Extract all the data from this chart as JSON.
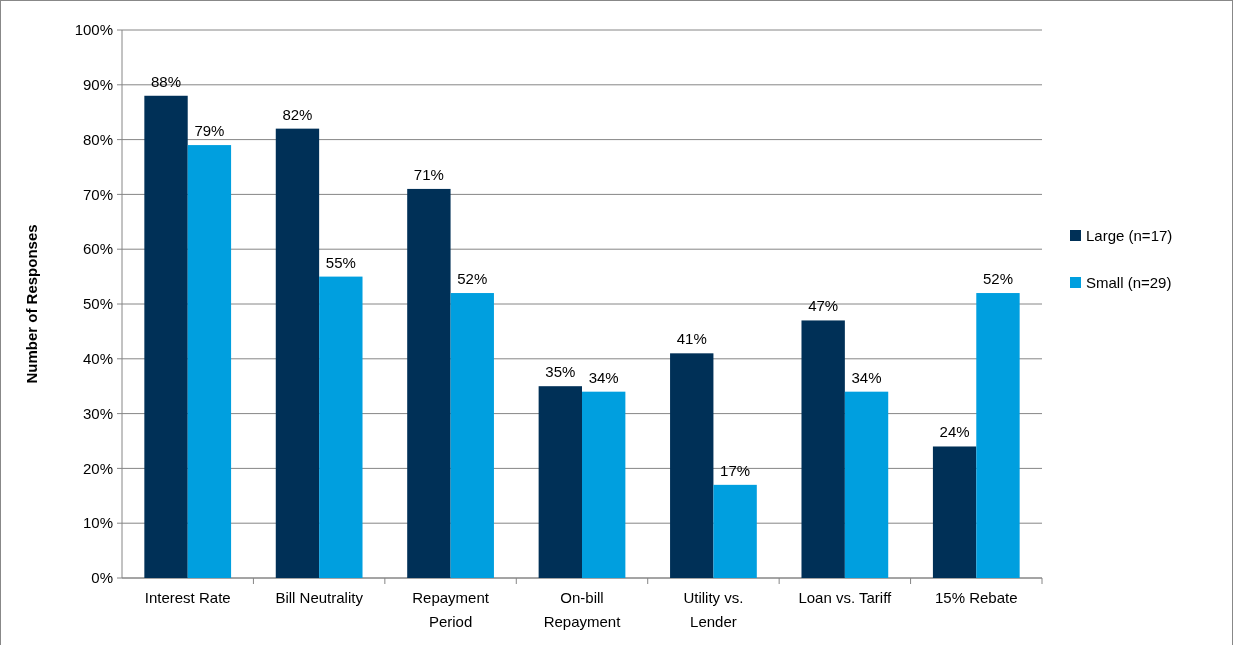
{
  "chart_data": {
    "type": "bar",
    "ylabel": "Number of Responses",
    "categories": [
      "Interest Rate",
      "Bill Neutrality",
      "Repayment Period",
      "On-bill Repayment",
      "Utility vs. Lender",
      "Loan vs. Tariff",
      "15% Rebate"
    ],
    "series": [
      {
        "name": "Large (n=17)",
        "color": "#003057",
        "values": [
          88,
          82,
          71,
          35,
          41,
          47,
          24
        ],
        "value_labels": [
          "88%",
          "82%",
          "71%",
          "35%",
          "41%",
          "47%",
          "24%"
        ]
      },
      {
        "name": "Small (n=29)",
        "color": "#009fdf",
        "values": [
          79,
          55,
          52,
          34,
          17,
          34,
          52
        ],
        "value_labels": [
          "79%",
          "55%",
          "52%",
          "34%",
          "17%",
          "34%",
          "52%"
        ]
      }
    ],
    "ylim": [
      0,
      100
    ],
    "yticks": [
      {
        "value": 0,
        "label": "0%"
      },
      {
        "value": 10,
        "label": "10%"
      },
      {
        "value": 20,
        "label": "20%"
      },
      {
        "value": 30,
        "label": "30%"
      },
      {
        "value": 40,
        "label": "40%"
      },
      {
        "value": 50,
        "label": "50%"
      },
      {
        "value": 60,
        "label": "60%"
      },
      {
        "value": 70,
        "label": "70%"
      },
      {
        "value": 80,
        "label": "80%"
      },
      {
        "value": 90,
        "label": "90%"
      },
      {
        "value": 100,
        "label": "100%"
      }
    ],
    "grid": "y",
    "legend": "right"
  }
}
